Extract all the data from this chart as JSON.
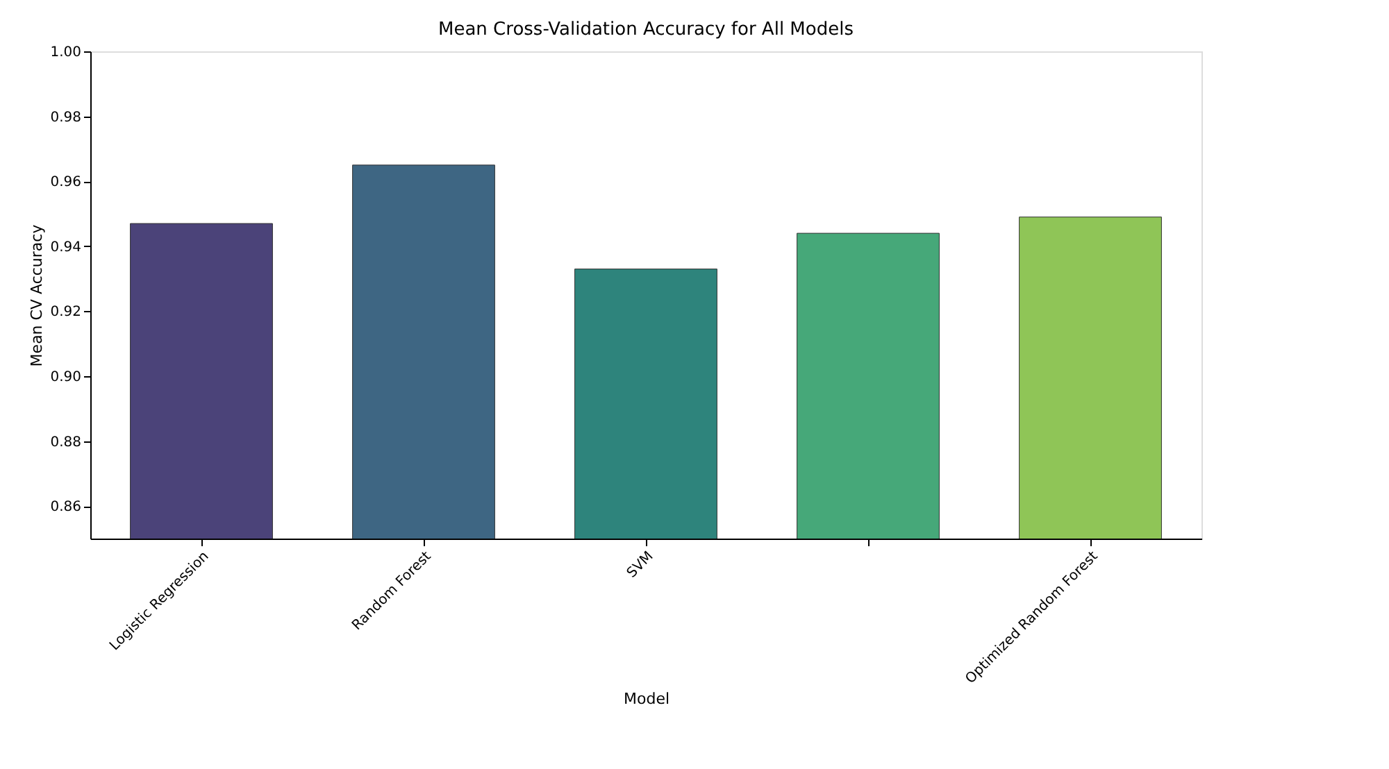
{
  "chart_data": {
    "type": "bar",
    "title": "Mean Cross-Validation Accuracy for All Models",
    "xlabel": "Model",
    "ylabel": "Mean CV Accuracy",
    "categories": [
      "Logistic Regression",
      "Random Forest",
      "SVM",
      null,
      "Optimized Random Forest"
    ],
    "values": [
      0.947,
      0.965,
      0.933,
      0.944,
      0.949
    ],
    "colors": [
      "#4b4379",
      "#3e6683",
      "#2e847c",
      "#46a879",
      "#8fc557"
    ],
    "ylim": [
      0.85,
      1.0
    ],
    "yticks": [
      0.86,
      0.88,
      {
        "value": 0.9,
        "label": "0.90"
      },
      0.92,
      0.94,
      0.96,
      0.98,
      {
        "value": 1.0,
        "label": "1.00"
      }
    ],
    "grid": false
  }
}
